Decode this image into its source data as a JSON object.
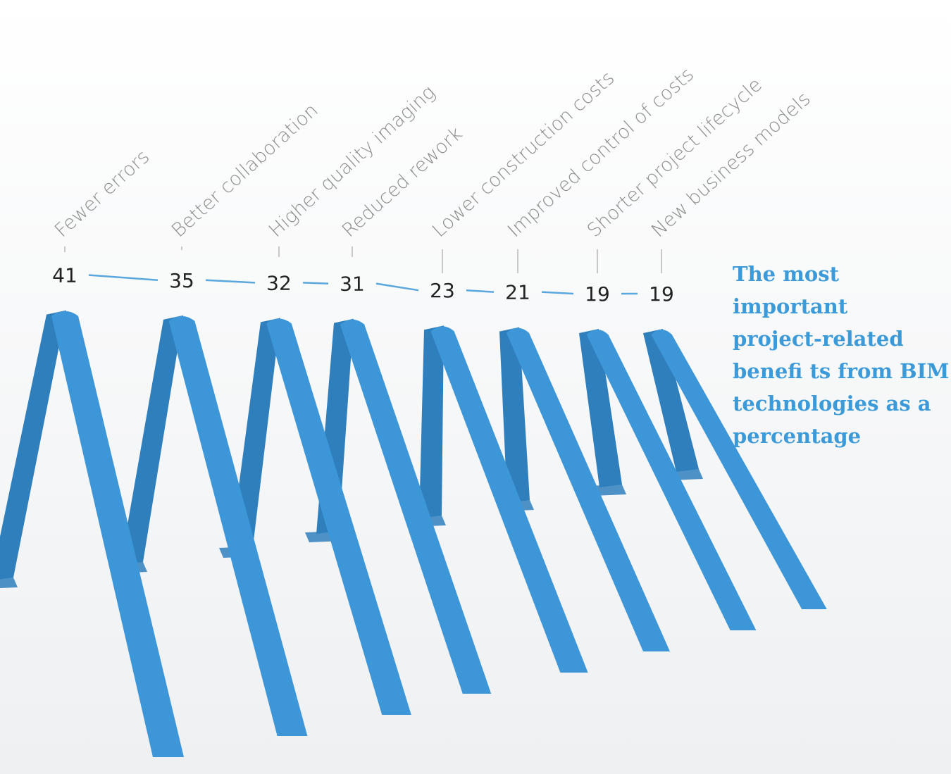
{
  "chart_data": {
    "type": "line",
    "title_lines": [
      "The most",
      "important",
      "project-related",
      "benefi ts from BIM",
      "technologies as a",
      "percentage"
    ],
    "categories": [
      "Fewer errors",
      "Better collaboration",
      "Higher quality imaging",
      "Reduced rework",
      "Lower construction costs",
      "Improved control of costs",
      "Shorter project lifecycle",
      "New business models"
    ],
    "values": [
      41,
      35,
      32,
      31,
      23,
      21,
      19,
      19
    ],
    "unit": "percentage",
    "grid": false,
    "legend": "none"
  },
  "colors": {
    "ribbon": "#3d96d8",
    "ribbon_shadow": "#2f7fbd",
    "title": "#3d9ad9",
    "category_text": "#8c8c8c",
    "value_text": "#222222",
    "connector": "#5aa7dd",
    "tick": "#c8c8c8"
  }
}
